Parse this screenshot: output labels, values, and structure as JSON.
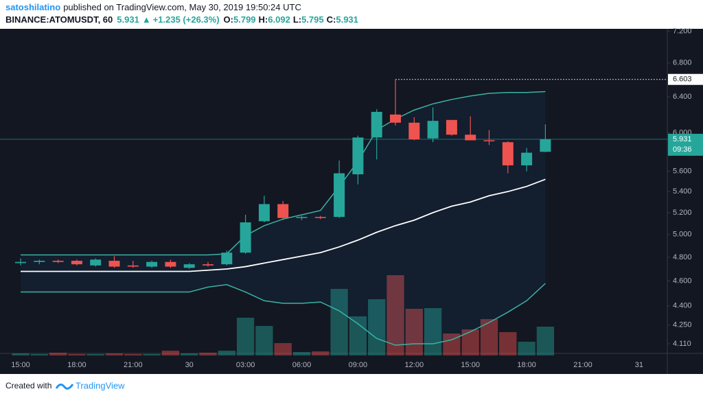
{
  "header": {
    "user": "satoshilatino",
    "published": "published on TradingView.com, May 30, 2019 19:50:24 UTC",
    "symbol": "BINANCE:ATOMUSDT, 60",
    "last": "5.931",
    "arrow": "▲",
    "change": "+1.235 (+26.3%)",
    "ohlc": [
      {
        "label": "O:",
        "value": "5.799"
      },
      {
        "label": "H:",
        "value": "6.092"
      },
      {
        "label": "L:",
        "value": "5.795"
      },
      {
        "label": "C:",
        "value": "5.931"
      }
    ]
  },
  "footer": {
    "text": "Created with",
    "brand": "TradingView"
  },
  "chart_data": {
    "type": "candlestick",
    "log_scale": true,
    "categories": [
      "15:00",
      null,
      null,
      "18:00",
      null,
      null,
      "21:00",
      null,
      null,
      "30",
      null,
      null,
      "03:00",
      null,
      null,
      "06:00",
      null,
      null,
      "09:00",
      null,
      null,
      "12:00",
      null,
      null,
      "15:00",
      null,
      null,
      "18:00",
      null,
      null,
      "21:00",
      null,
      null,
      "31",
      null
    ],
    "open": [
      4.75,
      4.76,
      4.77,
      4.77,
      4.73,
      4.77,
      4.73,
      4.72,
      4.76,
      4.71,
      4.74,
      4.74,
      4.84,
      5.12,
      5.28,
      5.15,
      5.16,
      5.16,
      5.57,
      5.95,
      6.2,
      6.11,
      5.94,
      6.14,
      5.98,
      5.92,
      5.9,
      5.66,
      5.799,
      null,
      null,
      null,
      null,
      null,
      null
    ],
    "high": [
      4.79,
      4.78,
      4.78,
      4.78,
      4.79,
      4.81,
      4.77,
      4.77,
      4.78,
      4.75,
      4.76,
      4.86,
      5.18,
      5.36,
      5.31,
      5.17,
      5.17,
      5.71,
      5.97,
      6.26,
      6.603,
      6.17,
      6.28,
      6.14,
      6.18,
      6.03,
      5.91,
      5.84,
      6.092,
      null,
      null,
      null,
      null,
      null,
      null
    ],
    "low": [
      4.73,
      4.74,
      4.75,
      4.73,
      4.72,
      4.71,
      4.71,
      4.71,
      4.71,
      4.7,
      4.72,
      4.73,
      4.83,
      5.11,
      5.13,
      5.13,
      5.14,
      5.15,
      5.47,
      5.72,
      6.08,
      5.92,
      5.9,
      5.97,
      5.92,
      5.87,
      5.58,
      5.6,
      5.795,
      null,
      null,
      null,
      null,
      null,
      null
    ],
    "close": [
      4.76,
      4.77,
      4.76,
      4.74,
      4.78,
      4.72,
      4.72,
      4.76,
      4.72,
      4.74,
      4.73,
      4.84,
      5.11,
      5.28,
      5.15,
      5.16,
      5.15,
      5.58,
      5.95,
      6.23,
      6.11,
      5.93,
      6.13,
      5.98,
      5.92,
      5.91,
      5.66,
      5.79,
      5.931,
      null,
      null,
      null,
      null,
      null,
      null
    ],
    "volume": [
      3,
      2,
      4,
      2,
      2,
      3,
      2,
      2,
      7,
      3,
      4,
      7,
      55,
      43,
      18,
      5,
      6,
      97,
      57,
      82,
      117,
      68,
      69,
      32,
      38,
      53,
      34,
      20,
      42,
      null,
      null,
      null,
      null,
      null,
      null
    ],
    "bands": {
      "color": "#3bb3a4",
      "middle_color": "#ffffff",
      "upper": [
        4.82,
        4.82,
        4.82,
        4.82,
        4.82,
        4.82,
        4.82,
        4.82,
        4.82,
        4.82,
        4.82,
        4.83,
        4.99,
        5.08,
        5.14,
        5.18,
        5.22,
        5.45,
        5.7,
        6.03,
        6.15,
        6.25,
        6.32,
        6.37,
        6.41,
        6.44,
        6.45,
        6.45,
        6.46,
        null,
        null,
        null,
        null,
        null,
        null
      ],
      "middle": [
        4.68,
        4.68,
        4.68,
        4.68,
        4.68,
        4.68,
        4.68,
        4.68,
        4.68,
        4.68,
        4.69,
        4.7,
        4.72,
        4.75,
        4.78,
        4.81,
        4.84,
        4.89,
        4.95,
        5.02,
        5.08,
        5.13,
        5.2,
        5.26,
        5.3,
        5.36,
        5.4,
        5.45,
        5.52,
        null,
        null,
        null,
        null,
        null,
        null
      ],
      "lower": [
        4.51,
        4.51,
        4.51,
        4.51,
        4.51,
        4.51,
        4.51,
        4.51,
        4.51,
        4.51,
        4.55,
        4.57,
        4.51,
        4.44,
        4.42,
        4.42,
        4.43,
        4.36,
        4.26,
        4.15,
        4.1,
        4.11,
        4.11,
        4.14,
        4.2,
        4.27,
        4.35,
        4.44,
        4.58,
        null,
        null,
        null,
        null,
        null,
        null
      ]
    },
    "up_color": "#26a69a",
    "down_color": "#ef5350",
    "ylim": [
      4.04,
      7.23
    ],
    "yticks": [
      {
        "value": 7.2,
        "label": "7.200"
      },
      {
        "value": 6.8,
        "label": "6.800"
      },
      {
        "value": 6.4,
        "label": "6.400"
      },
      {
        "value": 6.0,
        "label": "6.000"
      },
      {
        "value": 5.6,
        "label": "5.600"
      },
      {
        "value": 5.4,
        "label": "5.400"
      },
      {
        "value": 5.2,
        "label": "5.200"
      },
      {
        "value": 5.0,
        "label": "5.000"
      },
      {
        "value": 4.8,
        "label": "4.800"
      },
      {
        "value": 4.6,
        "label": "4.600"
      },
      {
        "value": 4.4,
        "label": "4.400"
      },
      {
        "value": 4.25,
        "label": "4.250"
      },
      {
        "value": 4.11,
        "label": "4.110"
      }
    ],
    "high_line": 6.603,
    "price_line": 5.931,
    "countdown": "09:36"
  }
}
